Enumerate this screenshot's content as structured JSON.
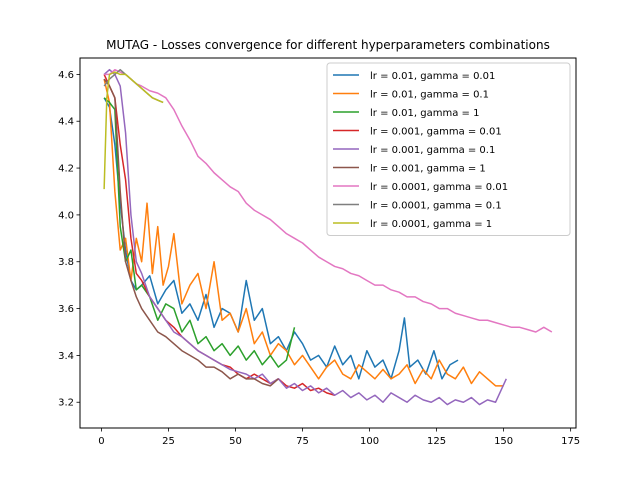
{
  "chart_data": {
    "type": "line",
    "title": "MUTAG - Losses convergence for different hyperparameters combinations",
    "xlabel": "",
    "ylabel": "",
    "xlim": [
      -8,
      177
    ],
    "ylim": [
      3.09,
      4.67
    ],
    "xticks": [
      0,
      25,
      50,
      75,
      100,
      125,
      150,
      175
    ],
    "yticks": [
      3.2,
      3.4,
      3.6,
      3.8,
      4.0,
      4.2,
      4.4,
      4.6
    ],
    "xtick_labels": [
      "0",
      "25",
      "50",
      "75",
      "100",
      "125",
      "150",
      "175"
    ],
    "ytick_labels": [
      "3.2",
      "3.4",
      "3.6",
      "3.8",
      "4.0",
      "4.2",
      "4.4",
      "4.6"
    ],
    "grid": false,
    "legend_position": "upper right",
    "series": [
      {
        "name": "lr = 0.01, gamma = 0.01",
        "color": "#1f77b4",
        "x": [
          1,
          3,
          5,
          7,
          9,
          11,
          13,
          15,
          18,
          21,
          24,
          27,
          30,
          33,
          36,
          39,
          42,
          45,
          48,
          51,
          54,
          57,
          60,
          63,
          66,
          69,
          72,
          75,
          78,
          81,
          84,
          87,
          90,
          93,
          96,
          99,
          102,
          105,
          108,
          111,
          113,
          115,
          118,
          121,
          124,
          127,
          130,
          133
        ],
        "values": [
          4.5,
          4.46,
          4.3,
          4.05,
          3.85,
          3.72,
          3.68,
          3.7,
          3.74,
          3.62,
          3.68,
          3.72,
          3.58,
          3.62,
          3.55,
          3.66,
          3.52,
          3.6,
          3.58,
          3.5,
          3.72,
          3.55,
          3.6,
          3.45,
          3.48,
          3.42,
          3.5,
          3.45,
          3.38,
          3.4,
          3.35,
          3.44,
          3.36,
          3.4,
          3.3,
          3.42,
          3.35,
          3.38,
          3.3,
          3.42,
          3.56,
          3.35,
          3.38,
          3.32,
          3.42,
          3.3,
          3.36,
          3.38
        ]
      },
      {
        "name": "lr = 0.01, gamma = 0.1",
        "color": "#ff7f0e",
        "x": [
          1,
          3,
          5,
          7,
          9,
          11,
          13,
          15,
          17,
          19,
          21,
          23,
          25,
          27,
          30,
          33,
          36,
          39,
          42,
          45,
          48,
          51,
          54,
          57,
          60,
          63,
          66,
          69,
          72,
          75,
          78,
          81,
          84,
          87,
          90,
          93,
          96,
          99,
          102,
          105,
          108,
          111,
          114,
          117,
          120,
          123,
          126,
          129,
          132,
          135,
          138,
          141,
          144,
          147,
          150
        ],
        "values": [
          4.58,
          4.48,
          4.1,
          3.85,
          3.9,
          3.72,
          3.9,
          3.8,
          4.05,
          3.75,
          3.95,
          3.7,
          3.78,
          3.92,
          3.62,
          3.7,
          3.75,
          3.6,
          3.8,
          3.55,
          3.58,
          3.5,
          3.6,
          3.45,
          3.5,
          3.4,
          3.45,
          3.42,
          3.36,
          3.4,
          3.35,
          3.3,
          3.35,
          3.38,
          3.32,
          3.3,
          3.36,
          3.33,
          3.3,
          3.34,
          3.3,
          3.32,
          3.36,
          3.28,
          3.34,
          3.3,
          3.38,
          3.32,
          3.3,
          3.35,
          3.28,
          3.33,
          3.3,
          3.27,
          3.27
        ]
      },
      {
        "name": "lr = 0.01, gamma = 1",
        "color": "#2ca02c",
        "x": [
          1,
          3,
          5,
          7,
          9,
          11,
          13,
          15,
          18,
          21,
          24,
          27,
          30,
          33,
          36,
          39,
          42,
          45,
          48,
          51,
          54,
          57,
          60,
          63,
          66,
          69,
          72
        ],
        "values": [
          4.5,
          4.48,
          4.45,
          3.95,
          3.8,
          3.85,
          3.68,
          3.7,
          3.65,
          3.55,
          3.62,
          3.6,
          3.5,
          3.55,
          3.45,
          3.48,
          3.42,
          3.45,
          3.4,
          3.44,
          3.38,
          3.42,
          3.36,
          3.4,
          3.35,
          3.38,
          3.52
        ]
      },
      {
        "name": "lr = 0.001, gamma = 0.01",
        "color": "#d62728",
        "x": [
          1,
          3,
          5,
          7,
          9,
          11,
          13,
          15,
          18,
          21,
          24,
          27,
          30,
          33,
          36,
          39,
          42,
          45,
          48,
          51,
          54,
          57,
          60,
          63,
          66,
          69,
          72,
          75,
          78,
          81,
          84,
          87
        ],
        "values": [
          4.6,
          4.55,
          4.5,
          4.3,
          4.15,
          3.9,
          3.75,
          3.72,
          3.65,
          3.6,
          3.55,
          3.52,
          3.48,
          3.45,
          3.42,
          3.4,
          3.38,
          3.36,
          3.35,
          3.32,
          3.3,
          3.32,
          3.3,
          3.28,
          3.3,
          3.27,
          3.26,
          3.28,
          3.25,
          3.26,
          3.24,
          3.23
        ]
      },
      {
        "name": "lr = 0.001, gamma = 0.1",
        "color": "#9467bd",
        "x": [
          1,
          3,
          5,
          7,
          9,
          11,
          13,
          15,
          18,
          21,
          24,
          27,
          30,
          33,
          36,
          39,
          42,
          45,
          48,
          51,
          54,
          57,
          60,
          63,
          66,
          69,
          72,
          75,
          78,
          81,
          84,
          87,
          90,
          93,
          96,
          99,
          102,
          105,
          108,
          111,
          114,
          117,
          120,
          123,
          126,
          129,
          132,
          135,
          138,
          141,
          144,
          147,
          151
        ],
        "values": [
          4.6,
          4.62,
          4.6,
          4.55,
          4.35,
          4.0,
          3.8,
          3.75,
          3.65,
          3.6,
          3.55,
          3.5,
          3.48,
          3.45,
          3.42,
          3.4,
          3.38,
          3.36,
          3.34,
          3.33,
          3.32,
          3.3,
          3.32,
          3.28,
          3.3,
          3.26,
          3.28,
          3.25,
          3.27,
          3.24,
          3.26,
          3.23,
          3.25,
          3.22,
          3.24,
          3.21,
          3.23,
          3.2,
          3.24,
          3.22,
          3.2,
          3.23,
          3.21,
          3.2,
          3.22,
          3.19,
          3.21,
          3.2,
          3.22,
          3.19,
          3.21,
          3.2,
          3.3
        ]
      },
      {
        "name": "lr = 0.001, gamma = 1",
        "color": "#8c564b",
        "x": [
          1,
          3,
          5,
          7,
          9,
          11,
          13,
          15,
          18,
          21,
          24,
          27,
          30,
          33,
          36,
          39,
          42,
          45,
          48,
          51,
          54,
          57,
          60,
          63,
          66
        ],
        "values": [
          4.58,
          4.55,
          4.5,
          4.1,
          3.8,
          3.72,
          3.65,
          3.6,
          3.55,
          3.5,
          3.48,
          3.45,
          3.42,
          3.4,
          3.38,
          3.35,
          3.35,
          3.33,
          3.3,
          3.32,
          3.3,
          3.3,
          3.28,
          3.27,
          3.3
        ]
      },
      {
        "name": "lr = 0.0001, gamma = 0.01",
        "color": "#e377c2",
        "x": [
          1,
          3,
          5,
          7,
          9,
          11,
          13,
          15,
          18,
          21,
          24,
          27,
          30,
          33,
          36,
          39,
          42,
          45,
          48,
          51,
          54,
          57,
          60,
          63,
          66,
          69,
          72,
          75,
          78,
          81,
          84,
          87,
          90,
          93,
          96,
          99,
          102,
          105,
          108,
          111,
          114,
          117,
          120,
          123,
          126,
          129,
          132,
          135,
          138,
          141,
          144,
          147,
          150,
          153,
          156,
          159,
          162,
          165,
          168
        ],
        "values": [
          4.6,
          4.6,
          4.62,
          4.61,
          4.6,
          4.58,
          4.56,
          4.55,
          4.53,
          4.52,
          4.5,
          4.45,
          4.38,
          4.32,
          4.25,
          4.22,
          4.18,
          4.15,
          4.12,
          4.1,
          4.05,
          4.02,
          4.0,
          3.98,
          3.95,
          3.92,
          3.9,
          3.88,
          3.85,
          3.82,
          3.8,
          3.78,
          3.77,
          3.75,
          3.74,
          3.72,
          3.7,
          3.7,
          3.68,
          3.67,
          3.65,
          3.65,
          3.63,
          3.62,
          3.6,
          3.6,
          3.58,
          3.57,
          3.56,
          3.55,
          3.55,
          3.54,
          3.53,
          3.52,
          3.52,
          3.51,
          3.5,
          3.52,
          3.5
        ]
      },
      {
        "name": "lr = 0.0001, gamma = 0.1",
        "color": "#7f7f7f",
        "x": [
          1,
          3,
          5,
          7,
          9,
          11,
          13,
          15,
          17,
          19,
          21,
          23
        ],
        "values": [
          4.55,
          4.58,
          4.6,
          4.62,
          4.6,
          4.58,
          4.56,
          4.54,
          4.52,
          4.5,
          4.49,
          4.48
        ]
      },
      {
        "name": "lr = 0.0001, gamma = 1",
        "color": "#bcbd22",
        "x": [
          1,
          2,
          3,
          5,
          7,
          9,
          11,
          13,
          15,
          17,
          19,
          21,
          23
        ],
        "values": [
          4.11,
          4.5,
          4.6,
          4.61,
          4.6,
          4.6,
          4.58,
          4.56,
          4.54,
          4.52,
          4.5,
          4.49,
          4.48
        ]
      }
    ]
  }
}
